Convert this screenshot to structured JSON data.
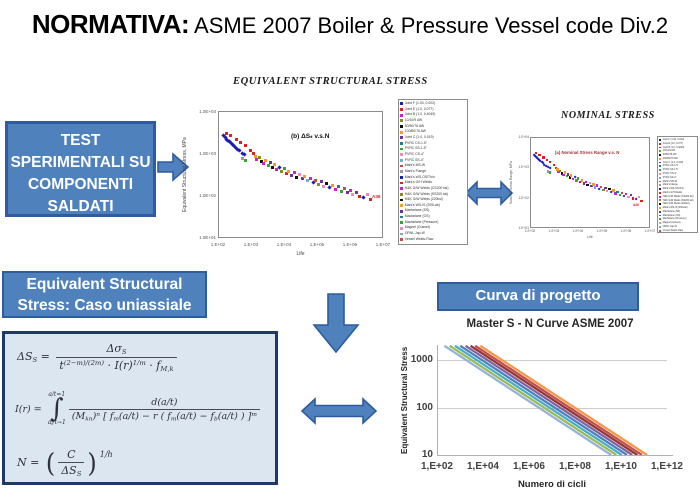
{
  "slide": {
    "title_main": "NORMATIVA:",
    "title_rest": " ASME 2007 Boiler & Pressure Vessel code Div.2"
  },
  "labels": {
    "equivalent": "EQUIVALENT STRUCTURAL STRESS",
    "nominal": "NOMINAL STRESS"
  },
  "boxes": {
    "test": "TEST SPERIMENTALI SU COMPONENTI SALDATI",
    "uniaxial": "Equivalent Structural Stress: Caso uniassiale",
    "design": "Curva di progetto"
  },
  "colors": {
    "box_blue": "#4F81BD",
    "box_border": "#2E5C9E",
    "formula_bg": "#DCE6F1",
    "formula_border": "#1F3864"
  },
  "palette": [
    "#1c1cb4",
    "#e02020",
    "#cc22cc",
    "#8a8a20",
    "#101010",
    "#f59a23",
    "#7030a0",
    "#1e8080",
    "#3aa23a",
    "#f08ab0",
    "#6fafd2",
    "#c0504d",
    "#9a9a9a"
  ],
  "scatter_legend": [
    "Joint F (1.00, 0.022)",
    "Joint E (1.0, 0.077)",
    "Joint B (1.0, 0.4049)",
    "10/10/9 AW",
    "50/50/76 AW",
    "100/80/76 AW",
    "Joint C (1.0, 0.019)",
    "PVRC CS-1.5\"",
    "PVRC SS-1.5\"",
    "PVRC CS-4\"",
    "PVRC SS-4\"",
    "Mark's MS-W",
    "Mark's Flange",
    "Mark's WS-OS/Thin",
    "Mark's G/H Welds",
    "H&K G/W Welds (CS200 ksi)",
    "H&K G/W Welds (SS200 ksi)",
    "H&K G/W Welds (220ksi)",
    "Mark's WS-IS (200Lab)",
    "Macfarlane (SS)",
    "Macfarlane (OS)",
    "Macfarlane (Pressure)",
    "Magnel (Gusset)",
    "ORNL Jap-W",
    "Vessel Welds-Flaw"
  ],
  "chart_data": {
    "equivalent_chart": {
      "type": "scatter",
      "inner_title": "(b) ΔSₛ v.s.N",
      "ylabel": "Equivalent Structural Stress, MPa",
      "xlabel": "Life",
      "y_ticks": [
        "1.0E+04",
        "1.0E+03",
        "1.0E+02",
        "1.0E+01"
      ],
      "x_ticks": [
        "1.E+02",
        "1.E+03",
        "1.E+04",
        "1.E+05",
        "1.E+06",
        "1.E+07"
      ],
      "x_log_range": [
        2,
        7
      ],
      "y_log_range": [
        1,
        4
      ],
      "annotation": "A36",
      "points": [
        [
          2.15,
          3.44,
          0
        ],
        [
          2.19,
          3.4,
          0
        ],
        [
          2.23,
          3.36,
          0
        ],
        [
          2.27,
          3.33,
          0
        ],
        [
          2.31,
          3.3,
          0
        ],
        [
          2.35,
          3.27,
          0
        ],
        [
          2.4,
          3.23,
          0
        ],
        [
          2.45,
          3.2,
          0
        ],
        [
          2.5,
          3.16,
          0
        ],
        [
          2.56,
          3.12,
          0
        ],
        [
          2.62,
          3.08,
          0
        ],
        [
          2.7,
          3.03,
          0
        ],
        [
          2.78,
          2.99,
          0
        ],
        [
          2.22,
          3.5,
          1
        ],
        [
          2.36,
          3.44,
          1
        ],
        [
          2.52,
          3.36,
          1
        ],
        [
          2.66,
          3.28,
          1
        ],
        [
          2.8,
          3.2,
          1
        ],
        [
          2.95,
          3.1,
          1
        ],
        [
          3.05,
          3.02,
          1
        ],
        [
          2.72,
          2.9,
          12
        ],
        [
          2.8,
          2.86,
          8
        ],
        [
          3.1,
          2.96,
          5
        ],
        [
          3.15,
          2.88,
          2
        ],
        [
          3.22,
          2.92,
          3
        ],
        [
          3.28,
          2.83,
          4
        ],
        [
          3.35,
          2.78,
          2
        ],
        [
          3.42,
          2.86,
          5
        ],
        [
          3.5,
          2.74,
          8
        ],
        [
          3.55,
          2.8,
          6
        ],
        [
          3.62,
          2.7,
          4
        ],
        [
          3.68,
          2.76,
          5
        ],
        [
          3.75,
          2.64,
          2
        ],
        [
          3.82,
          2.7,
          0
        ],
        [
          3.9,
          2.6,
          3
        ],
        [
          3.97,
          2.66,
          8
        ],
        [
          4.05,
          2.55,
          1
        ],
        [
          4.12,
          2.6,
          5
        ],
        [
          4.2,
          2.5,
          6
        ],
        [
          4.28,
          2.56,
          2
        ],
        [
          4.36,
          2.46,
          4
        ],
        [
          4.45,
          2.52,
          9
        ],
        [
          4.52,
          2.42,
          6
        ],
        [
          4.6,
          2.47,
          5
        ],
        [
          4.68,
          2.37,
          10
        ],
        [
          4.76,
          2.43,
          2
        ],
        [
          4.85,
          2.33,
          0
        ],
        [
          4.93,
          2.39,
          11
        ],
        [
          5.02,
          2.29,
          3
        ],
        [
          5.1,
          2.35,
          6
        ],
        [
          5.18,
          2.25,
          9
        ],
        [
          5.27,
          2.31,
          4
        ],
        [
          5.35,
          2.21,
          0
        ],
        [
          5.44,
          2.27,
          5
        ],
        [
          5.52,
          2.17,
          2
        ],
        [
          5.61,
          2.23,
          7
        ],
        [
          5.7,
          2.13,
          8
        ],
        [
          5.79,
          2.19,
          11
        ],
        [
          5.88,
          2.09,
          6
        ],
        [
          5.97,
          2.15,
          2
        ],
        [
          6.06,
          2.05,
          9
        ],
        [
          6.16,
          2.11,
          6
        ],
        [
          6.26,
          2.01,
          1
        ],
        [
          6.38,
          1.97,
          0
        ],
        [
          6.5,
          2.05,
          9
        ],
        [
          6.6,
          1.93,
          1
        ]
      ]
    },
    "nominal_chart": {
      "type": "scatter",
      "inner_title": "(a) Nominal Stress Range v.s. N",
      "ylabel": "Nominal Stress Range, MPa",
      "xlabel": "Life",
      "y_ticks": [
        "1.E+04",
        "1.E+03",
        "1.E+02",
        "1.E+01"
      ],
      "x_ticks": [
        "1.E+02",
        "1.E+03",
        "1.E+04",
        "1.E+05",
        "1.E+06",
        "1.E+07"
      ],
      "x_log_range": [
        2,
        7
      ],
      "y_log_range": [
        1,
        4
      ],
      "annotation": "A36"
    },
    "design_chart": {
      "type": "line",
      "title": "Master S - N Curve ASME 2007",
      "xlabel": "Numero di cicli",
      "ylabel": "Equivalent  Structural Stress",
      "x_ticks": [
        "1,E+02",
        "1,E+04",
        "1,E+06",
        "1,E+08",
        "1,E+10",
        "1,E+12"
      ],
      "y_ticks": [
        "1000",
        "100",
        "10"
      ],
      "x_log_range": [
        2,
        12
      ],
      "y_log_range": [
        1,
        3.32
      ],
      "top_stress": 2000,
      "decades_span": 7.25,
      "lines": [
        {
          "color": "#95B3D7",
          "logN_at_top": 2.32
        },
        {
          "color": "#9BBB59",
          "logN_at_top": 2.55
        },
        {
          "color": "#4BACC6",
          "logN_at_top": 2.78
        },
        {
          "color": "#4F81BD",
          "logN_at_top": 3.01
        },
        {
          "color": "#8064A2",
          "logN_at_top": 3.24
        },
        {
          "color": "#953735",
          "logN_at_top": 3.46
        },
        {
          "color": "#C0504D",
          "logN_at_top": 3.66
        },
        {
          "color": "#F79646",
          "logN_at_top": 3.88
        }
      ]
    }
  },
  "formulas": {
    "f1": {
      "lhs": [
        [
          "ΔS",
          "n"
        ],
        [
          "S",
          "sub"
        ],
        [
          " = ",
          "n"
        ]
      ],
      "num": [
        [
          "Δσ",
          "n"
        ],
        [
          "S",
          "sub"
        ]
      ],
      "den": [
        [
          "t",
          "n"
        ],
        [
          "(2−m)/(2m)",
          "sup"
        ],
        [
          " · I(r)",
          "n"
        ],
        [
          "1/m",
          "sup"
        ],
        [
          " · f",
          "n"
        ],
        [
          "M,k",
          "sub"
        ]
      ]
    },
    "f2": {
      "lhs": [
        [
          "I(r) = ",
          "n"
        ]
      ],
      "int_top": [
        [
          "a/t=1",
          "n"
        ]
      ],
      "int_bottom": [
        [
          "a",
          "n"
        ],
        [
          "i",
          "sub"
        ],
        [
          "/t→1",
          "n"
        ]
      ],
      "num": [
        [
          "d(a/t)",
          "n"
        ]
      ],
      "den": [
        [
          "(M",
          "n"
        ],
        [
          "kn",
          "sub"
        ],
        [
          ")",
          "n"
        ],
        [
          "n",
          "sup"
        ],
        [
          " [ f",
          "n"
        ],
        [
          "m",
          "sub"
        ],
        [
          "(a/t) − r ( f",
          "n"
        ],
        [
          "m",
          "sub"
        ],
        [
          "(a/t) − f",
          "n"
        ],
        [
          "b",
          "sub"
        ],
        [
          "(a/t) ) ]",
          "n"
        ],
        [
          "m",
          "sup"
        ]
      ]
    },
    "f3": {
      "lhs": [
        [
          "N = ",
          "n"
        ]
      ],
      "num": [
        [
          "C",
          "n"
        ]
      ],
      "den": [
        [
          "ΔS",
          "n"
        ],
        [
          "S",
          "sub"
        ]
      ],
      "exp": [
        [
          "1/h",
          "n"
        ]
      ]
    }
  }
}
